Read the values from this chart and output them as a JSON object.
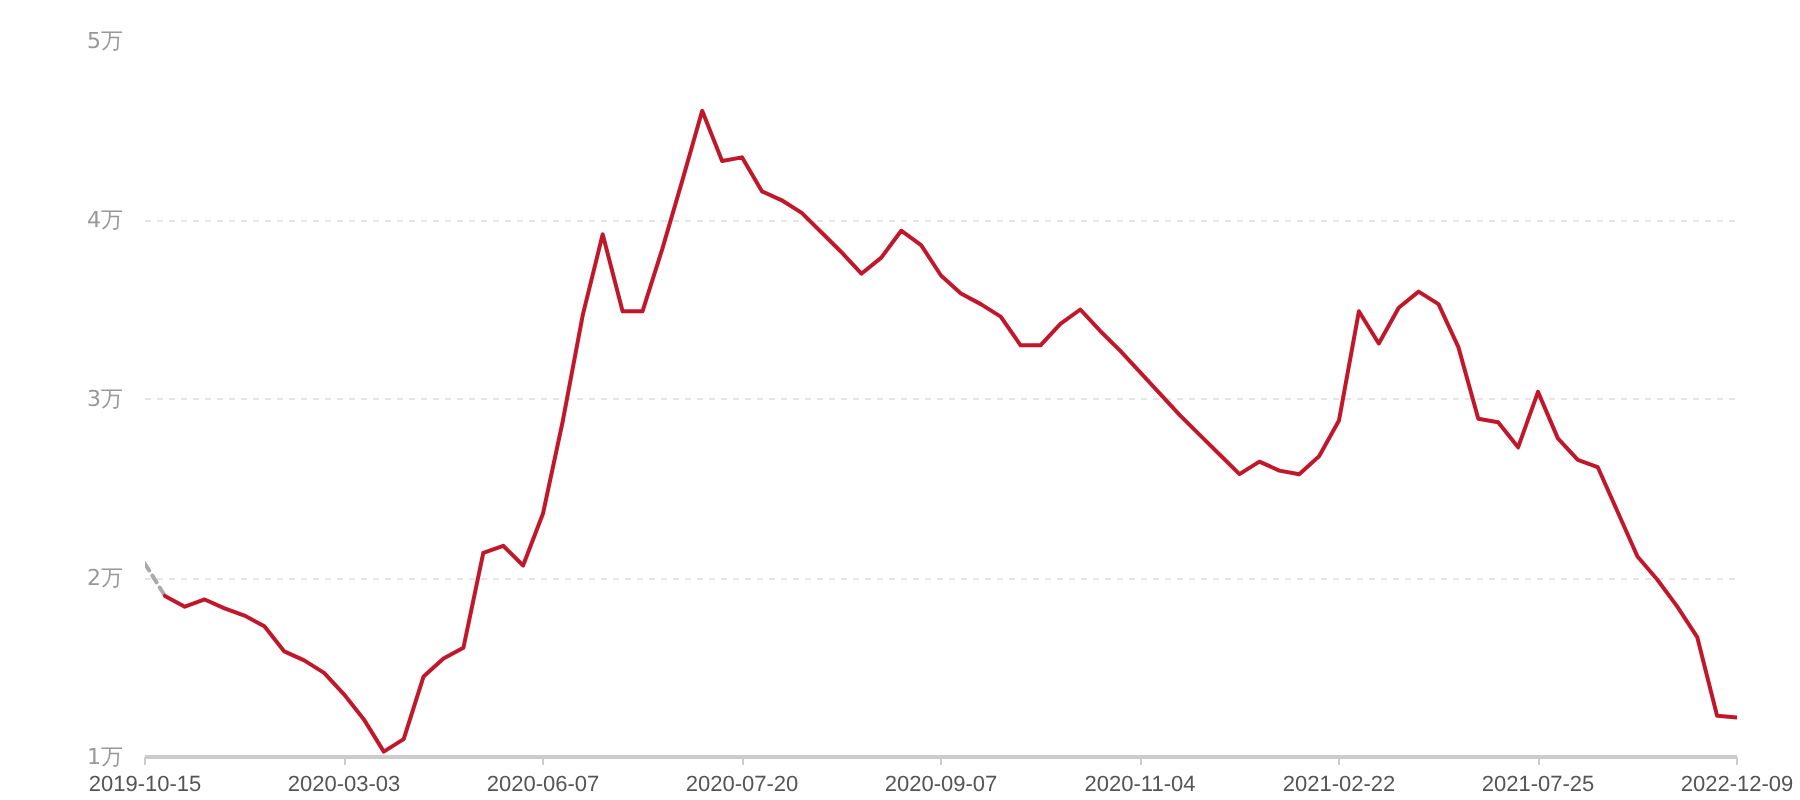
{
  "chart_data": {
    "type": "line",
    "categories": [
      "2019-10-15",
      null,
      null,
      null,
      null,
      null,
      null,
      null,
      null,
      null,
      "2020-03-03",
      null,
      null,
      null,
      null,
      null,
      null,
      null,
      null,
      null,
      "2020-06-07",
      null,
      null,
      null,
      null,
      null,
      null,
      null,
      null,
      null,
      "2020-07-20",
      null,
      null,
      null,
      null,
      null,
      null,
      null,
      null,
      null,
      "2020-09-07",
      null,
      null,
      null,
      null,
      null,
      null,
      null,
      null,
      null,
      "2020-11-04",
      null,
      null,
      null,
      null,
      null,
      null,
      null,
      null,
      null,
      "2021-02-22",
      null,
      null,
      null,
      null,
      null,
      null,
      null,
      null,
      null,
      "2021-07-25",
      null,
      null,
      null,
      null,
      null,
      null,
      null,
      null,
      null,
      "2022-12-09"
    ],
    "series": [
      {
        "color": "#aaaaaa",
        "line_style": "dashed",
        "values": [
          2.08,
          1.9,
          null,
          null,
          null,
          null,
          null,
          null,
          null,
          null,
          null,
          null,
          null,
          null,
          null,
          null,
          null,
          null,
          null,
          null,
          null,
          null,
          null,
          null,
          null,
          null,
          null,
          null,
          null,
          null,
          null,
          null,
          null,
          null,
          null,
          null,
          null,
          null,
          null,
          null,
          null,
          null,
          null,
          null,
          null,
          null,
          null,
          null,
          null,
          null,
          null,
          null,
          null,
          null,
          null,
          null,
          null,
          null,
          null,
          null,
          null,
          null,
          null,
          null,
          null,
          null,
          null,
          null,
          null,
          null,
          null,
          null,
          null,
          null,
          null,
          null,
          null,
          null,
          null,
          null,
          null
        ]
      },
      {
        "color": "#c0182a",
        "line_style": "solid",
        "values": [
          null,
          1.9,
          1.84,
          1.88,
          1.83,
          1.79,
          1.73,
          1.59,
          1.54,
          1.47,
          1.35,
          1.21,
          1.03,
          1.1,
          1.45,
          1.55,
          1.61,
          2.14,
          2.18,
          2.07,
          2.36,
          2.88,
          3.47,
          3.92,
          3.49,
          3.49,
          3.84,
          4.22,
          4.61,
          4.33,
          4.35,
          4.16,
          4.11,
          4.04,
          3.93,
          3.82,
          3.7,
          3.79,
          3.94,
          3.86,
          3.69,
          3.59,
          3.53,
          3.46,
          3.3,
          3.3,
          3.42,
          3.5,
          3.38,
          3.27,
          3.15,
          3.03,
          2.91,
          2.8,
          2.69,
          2.58,
          2.65,
          2.6,
          2.58,
          2.68,
          2.88,
          3.49,
          3.31,
          3.51,
          3.6,
          3.53,
          3.29,
          2.89,
          2.87,
          2.73,
          3.04,
          2.78,
          2.66,
          2.62,
          2.37,
          2.12,
          1.99,
          1.84,
          1.67,
          1.23,
          1.22
        ]
      }
    ],
    "ylim": [
      1,
      5
    ],
    "yticks": [
      {
        "value": 1,
        "label": "1万"
      },
      {
        "value": 2,
        "label": "2万"
      },
      {
        "value": 3,
        "label": "3万"
      },
      {
        "value": 4,
        "label": "4万"
      },
      {
        "value": 5,
        "label": "5万"
      }
    ],
    "grid": "y",
    "marker": "none"
  }
}
